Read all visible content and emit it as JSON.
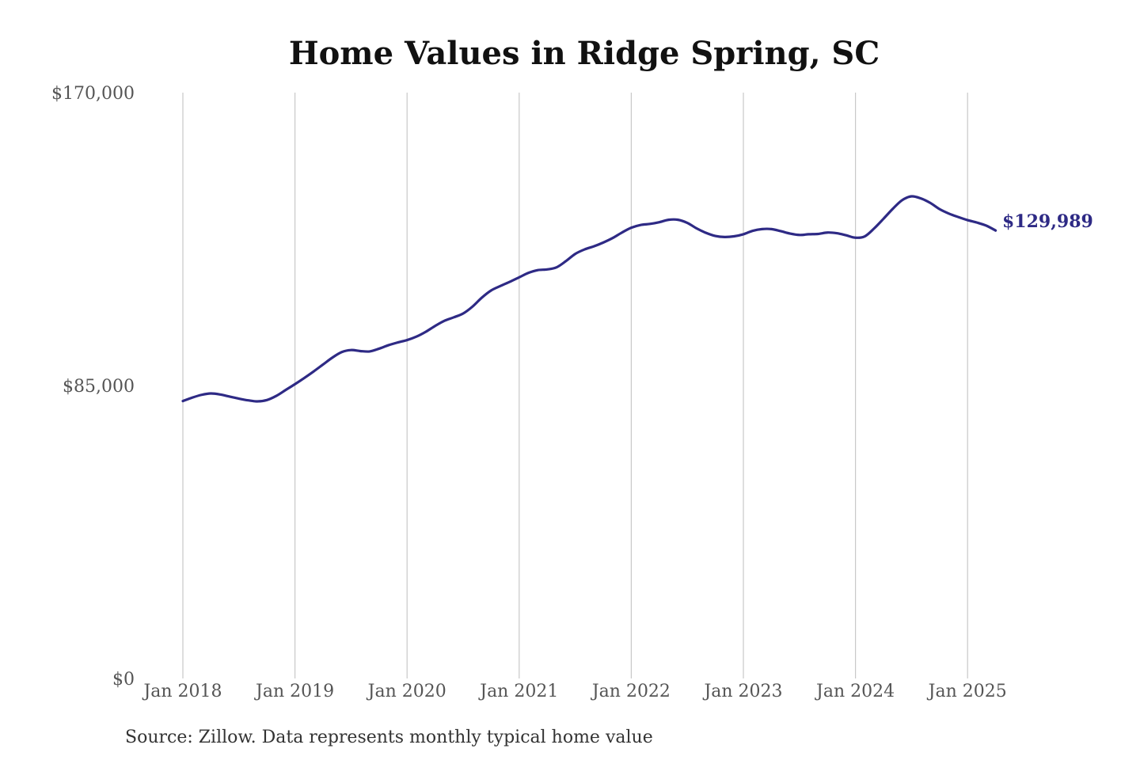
{
  "chart_data": {
    "type": "line",
    "title": "Home Values in Ridge Spring, SC",
    "xlabel": "",
    "ylabel": "",
    "source_note": "Source: Zillow. Data represents monthly typical home value",
    "end_label": "$129,989",
    "line_color": "#2e2a85",
    "grid": "vertical gridlines at January of each year",
    "x_ticks": [
      "Jan 2018",
      "Jan 2019",
      "Jan 2020",
      "Jan 2021",
      "Jan 2022",
      "Jan 2023",
      "Jan 2024",
      "Jan 2025"
    ],
    "y_ticks": [
      {
        "value": 0,
        "label": "$0"
      },
      {
        "value": 85000,
        "label": "$85,000"
      },
      {
        "value": 170000,
        "label": "$170,000"
      }
    ],
    "ylim": [
      0,
      170000
    ],
    "xlim": [
      "2018-01",
      "2025-12"
    ],
    "series": [
      {
        "name": "",
        "points": [
          [
            "2018-01",
            80500
          ],
          [
            "2018-02",
            81500
          ],
          [
            "2018-03",
            82300
          ],
          [
            "2018-04",
            82700
          ],
          [
            "2018-05",
            82400
          ],
          [
            "2018-06",
            81800
          ],
          [
            "2018-07",
            81200
          ],
          [
            "2018-08",
            80700
          ],
          [
            "2018-09",
            80400
          ],
          [
            "2018-10",
            80800
          ],
          [
            "2018-11",
            82000
          ],
          [
            "2018-12",
            83700
          ],
          [
            "2019-01",
            85400
          ],
          [
            "2019-02",
            87200
          ],
          [
            "2019-03",
            89100
          ],
          [
            "2019-04",
            91100
          ],
          [
            "2019-05",
            93100
          ],
          [
            "2019-06",
            94700
          ],
          [
            "2019-07",
            95300
          ],
          [
            "2019-08",
            95000
          ],
          [
            "2019-09",
            94900
          ],
          [
            "2019-10",
            95700
          ],
          [
            "2019-11",
            96700
          ],
          [
            "2019-12",
            97500
          ],
          [
            "2020-01",
            98200
          ],
          [
            "2020-02",
            99200
          ],
          [
            "2020-03",
            100600
          ],
          [
            "2020-04",
            102300
          ],
          [
            "2020-05",
            103800
          ],
          [
            "2020-06",
            104800
          ],
          [
            "2020-07",
            105900
          ],
          [
            "2020-08",
            107900
          ],
          [
            "2020-09",
            110500
          ],
          [
            "2020-10",
            112600
          ],
          [
            "2020-11",
            113900
          ],
          [
            "2020-12",
            115100
          ],
          [
            "2021-01",
            116400
          ],
          [
            "2021-02",
            117700
          ],
          [
            "2021-03",
            118500
          ],
          [
            "2021-04",
            118700
          ],
          [
            "2021-05",
            119300
          ],
          [
            "2021-06",
            121100
          ],
          [
            "2021-07",
            123200
          ],
          [
            "2021-08",
            124500
          ],
          [
            "2021-09",
            125400
          ],
          [
            "2021-10",
            126500
          ],
          [
            "2021-11",
            127800
          ],
          [
            "2021-12",
            129400
          ],
          [
            "2022-01",
            130800
          ],
          [
            "2022-02",
            131600
          ],
          [
            "2022-03",
            131900
          ],
          [
            "2022-04",
            132400
          ],
          [
            "2022-05",
            133100
          ],
          [
            "2022-06",
            133100
          ],
          [
            "2022-07",
            132200
          ],
          [
            "2022-08",
            130600
          ],
          [
            "2022-09",
            129300
          ],
          [
            "2022-10",
            128400
          ],
          [
            "2022-11",
            128100
          ],
          [
            "2022-12",
            128300
          ],
          [
            "2023-01",
            128900
          ],
          [
            "2023-02",
            129900
          ],
          [
            "2023-03",
            130400
          ],
          [
            "2023-04",
            130400
          ],
          [
            "2023-05",
            129800
          ],
          [
            "2023-06",
            129100
          ],
          [
            "2023-07",
            128700
          ],
          [
            "2023-08",
            128900
          ],
          [
            "2023-09",
            129000
          ],
          [
            "2023-10",
            129400
          ],
          [
            "2023-11",
            129200
          ],
          [
            "2023-12",
            128600
          ],
          [
            "2024-01",
            127900
          ],
          [
            "2024-02",
            128300
          ],
          [
            "2024-03",
            130600
          ],
          [
            "2024-04",
            133400
          ],
          [
            "2024-05",
            136300
          ],
          [
            "2024-06",
            138800
          ],
          [
            "2024-07",
            139900
          ],
          [
            "2024-08",
            139300
          ],
          [
            "2024-09",
            138000
          ],
          [
            "2024-10",
            136200
          ],
          [
            "2024-11",
            134900
          ],
          [
            "2024-12",
            133900
          ],
          [
            "2025-01",
            133000
          ],
          [
            "2025-02",
            132300
          ],
          [
            "2025-03",
            131400
          ],
          [
            "2025-04",
            129989
          ]
        ]
      }
    ]
  }
}
